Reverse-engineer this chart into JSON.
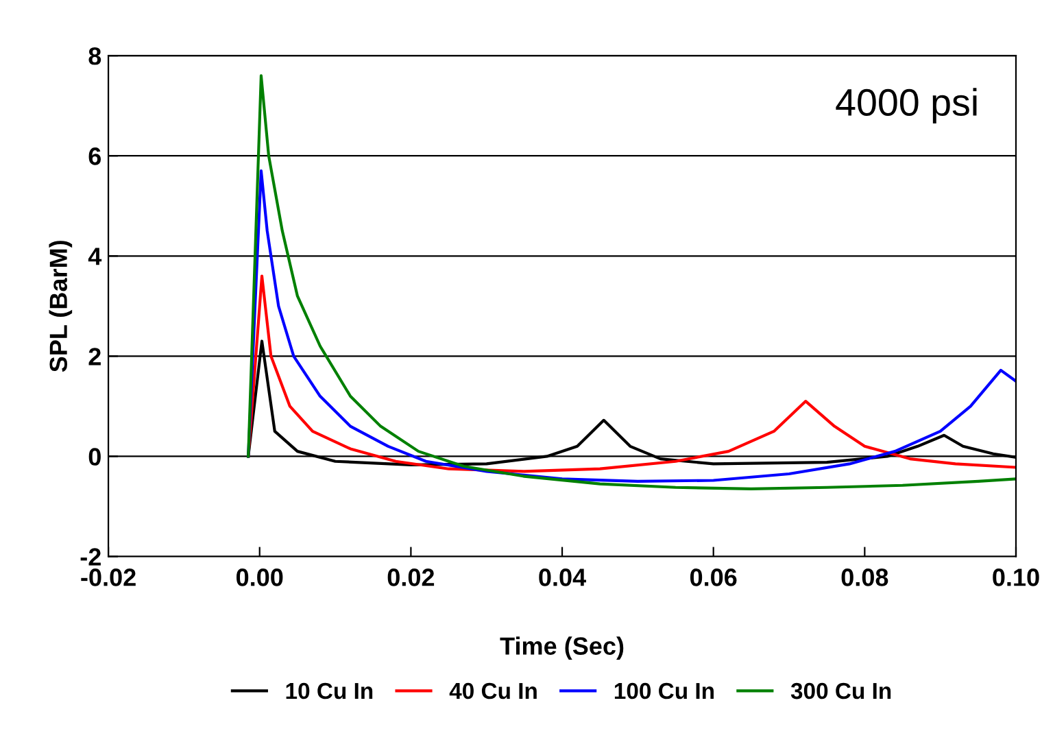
{
  "chart_data": {
    "type": "line",
    "xlabel": "Time (Sec)",
    "ylabel": "SPL (BarM)",
    "annotations": [
      "4000 psi"
    ],
    "xlim": [
      -0.02,
      0.1
    ],
    "ylim": [
      -2,
      8
    ],
    "xticks": [
      {
        "value": -0.02,
        "label": "-0.02"
      },
      {
        "value": 0,
        "label": "0.00"
      },
      {
        "value": 0.02,
        "label": "0.02"
      },
      {
        "value": 0.04,
        "label": "0.04"
      },
      {
        "value": 0.06,
        "label": "0.06"
      },
      {
        "value": 0.08,
        "label": "0.08"
      },
      {
        "value": 0.1,
        "label": "0.10"
      }
    ],
    "yticks": [
      -2,
      0,
      2,
      4,
      6,
      8
    ],
    "grid": "y",
    "legend": "bottom",
    "marker": "none",
    "line_style": "solid",
    "series": [
      {
        "name": "10 Cu In",
        "color": "#000000",
        "x": [
          -0.0015,
          0.0003,
          0.002,
          0.005,
          0.01,
          0.02,
          0.03,
          0.038,
          0.042,
          0.0455,
          0.049,
          0.053,
          0.06,
          0.075,
          0.083,
          0.087,
          0.0905,
          0.093,
          0.097,
          0.1
        ],
        "values": [
          0,
          2.3,
          0.5,
          0.1,
          -0.1,
          -0.17,
          -0.15,
          0,
          0.2,
          0.72,
          0.2,
          -0.05,
          -0.15,
          -0.12,
          0,
          0.2,
          0.42,
          0.2,
          0.05,
          -0.02
        ]
      },
      {
        "name": "40 Cu In",
        "color": "#ff0000",
        "x": [
          -0.0015,
          0.0003,
          0.0015,
          0.004,
          0.007,
          0.012,
          0.018,
          0.025,
          0.035,
          0.045,
          0.055,
          0.062,
          0.068,
          0.0722,
          0.076,
          0.08,
          0.086,
          0.092,
          0.1
        ],
        "values": [
          0,
          3.6,
          2.0,
          1.0,
          0.5,
          0.15,
          -0.1,
          -0.25,
          -0.3,
          -0.25,
          -0.1,
          0.1,
          0.5,
          1.1,
          0.6,
          0.2,
          -0.05,
          -0.15,
          -0.22
        ]
      },
      {
        "name": "100 Cu In",
        "color": "#0000ff",
        "x": [
          -0.0015,
          0.0002,
          0.001,
          0.0025,
          0.0045,
          0.008,
          0.012,
          0.017,
          0.022,
          0.03,
          0.04,
          0.05,
          0.06,
          0.07,
          0.078,
          0.084,
          0.09,
          0.094,
          0.098,
          0.1
        ],
        "values": [
          0,
          5.7,
          4.5,
          3.0,
          2.0,
          1.2,
          0.6,
          0.2,
          -0.1,
          -0.3,
          -0.45,
          -0.5,
          -0.48,
          -0.35,
          -0.15,
          0.1,
          0.5,
          1.0,
          1.72,
          1.5
        ]
      },
      {
        "name": "300 Cu In",
        "color": "#008000",
        "x": [
          -0.0015,
          0.0002,
          0.0012,
          0.003,
          0.005,
          0.008,
          0.012,
          0.016,
          0.021,
          0.027,
          0.035,
          0.045,
          0.055,
          0.065,
          0.075,
          0.085,
          0.095,
          0.1
        ],
        "values": [
          0,
          7.6,
          6.0,
          4.5,
          3.2,
          2.2,
          1.2,
          0.6,
          0.1,
          -0.2,
          -0.4,
          -0.55,
          -0.62,
          -0.65,
          -0.62,
          -0.58,
          -0.5,
          -0.45
        ]
      }
    ]
  }
}
